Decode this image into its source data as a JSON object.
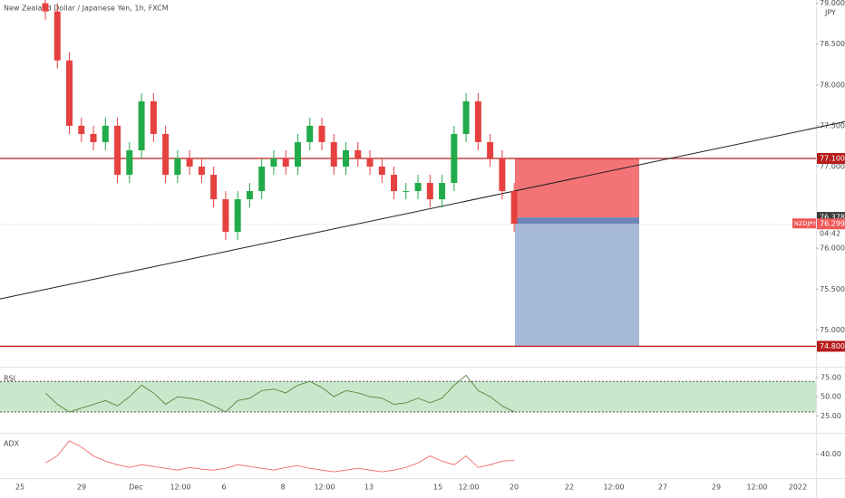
{
  "chart_data": {
    "type": "candlestick",
    "title": "New Zealand Dollar / Japanese Yen, 1h, FXCM",
    "currency_label": "JPY",
    "symbol": "NZDJPY",
    "countdown": "04:42",
    "open": [
      79.0,
      78.9,
      78.3,
      77.5,
      77.4,
      77.3,
      77.5,
      76.9,
      77.2,
      77.8,
      77.4,
      76.9,
      77.1,
      77.0,
      76.9,
      76.6,
      76.2,
      76.6,
      76.7,
      77.0,
      77.1,
      77.0,
      77.3,
      77.5,
      77.3,
      77.0,
      77.2,
      77.1,
      77.0,
      76.9,
      76.7,
      76.7,
      76.8,
      76.6,
      76.8,
      77.4,
      77.8,
      77.3,
      77.1,
      76.7
    ],
    "high": [
      79.1,
      79.0,
      78.4,
      77.6,
      77.5,
      77.6,
      77.6,
      77.3,
      77.9,
      77.9,
      77.5,
      77.2,
      77.2,
      77.1,
      77.0,
      76.7,
      76.7,
      76.8,
      77.1,
      77.2,
      77.2,
      77.4,
      77.6,
      77.6,
      77.4,
      77.3,
      77.3,
      77.2,
      77.1,
      77.0,
      76.8,
      76.9,
      76.9,
      76.9,
      77.5,
      77.9,
      77.9,
      77.4,
      77.2,
      76.8
    ],
    "low": [
      78.8,
      78.2,
      77.4,
      77.3,
      77.2,
      77.2,
      76.8,
      76.8,
      77.1,
      77.3,
      76.8,
      76.8,
      76.9,
      76.8,
      76.5,
      76.1,
      76.1,
      76.5,
      76.6,
      76.9,
      76.9,
      76.9,
      77.2,
      77.2,
      76.9,
      76.9,
      77.0,
      76.9,
      76.8,
      76.6,
      76.6,
      76.6,
      76.5,
      76.5,
      76.7,
      77.3,
      77.2,
      77.0,
      76.6,
      76.2
    ],
    "close": [
      78.9,
      78.3,
      77.5,
      77.4,
      77.3,
      77.5,
      76.9,
      77.2,
      77.8,
      77.4,
      76.9,
      77.1,
      77.0,
      76.9,
      76.6,
      76.2,
      76.6,
      76.7,
      77.0,
      77.1,
      77.0,
      77.3,
      77.5,
      77.3,
      77.0,
      77.2,
      77.1,
      77.0,
      76.9,
      76.7,
      76.7,
      76.8,
      76.6,
      76.8,
      77.4,
      77.8,
      77.3,
      77.1,
      76.7,
      76.3
    ],
    "up_color": "#22ab4a",
    "down_color": "#e5413f",
    "ylim": [
      74.55,
      79.04
    ],
    "yticks": [
      {
        "value": 79.0,
        "label": "79.000"
      },
      {
        "value": 78.5,
        "label": "78.500"
      },
      {
        "value": 78.0,
        "label": "78.000"
      },
      {
        "value": 77.5,
        "label": "77.500"
      },
      {
        "value": 77.0,
        "label": "77.000"
      },
      {
        "value": 76.0,
        "label": "76.000"
      },
      {
        "value": 75.5,
        "label": "75.500"
      },
      {
        "value": 75.0,
        "label": "75.000"
      }
    ],
    "x_labels": [
      "25",
      "29",
      "Dec",
      "12:00",
      "6",
      "8",
      "12:00",
      "13",
      "15",
      "12:00",
      "20",
      "22",
      "12:00",
      "27",
      "29",
      "12:00",
      "2022"
    ],
    "stop": {
      "value": 77.1,
      "label": "77.100"
    },
    "entry": {
      "value": 76.378,
      "label": "76.378"
    },
    "last_price": {
      "value": 76.299,
      "label": "76.299"
    },
    "target": {
      "value": 74.8,
      "label": "74.800"
    },
    "trendline": [
      75.38,
      77.55
    ],
    "rsi": {
      "name": "RSI",
      "color": "#4f7a2e",
      "values": [
        55,
        40,
        30,
        35,
        40,
        45,
        38,
        50,
        65,
        55,
        40,
        50,
        48,
        45,
        38,
        30,
        45,
        48,
        58,
        60,
        55,
        65,
        70,
        62,
        50,
        58,
        55,
        50,
        48,
        40,
        42,
        48,
        42,
        48,
        65,
        78,
        58,
        50,
        38,
        30
      ],
      "ylim": [
        4,
        88
      ],
      "band": [
        30,
        70
      ],
      "yticks": [
        {
          "value": 75,
          "label": "75.00"
        },
        {
          "value": 50,
          "label": "50.00"
        },
        {
          "value": 25,
          "label": "25.00"
        }
      ]
    },
    "adx": {
      "name": "ADX",
      "color": "#f05a5a",
      "values": [
        30,
        38,
        55,
        48,
        38,
        32,
        28,
        25,
        28,
        26,
        24,
        22,
        25,
        23,
        22,
        24,
        28,
        26,
        24,
        22,
        25,
        27,
        24,
        22,
        20,
        22,
        24,
        22,
        20,
        22,
        25,
        30,
        38,
        32,
        28,
        38,
        25,
        28,
        32,
        33
      ],
      "ylim": [
        13,
        63
      ],
      "yticks": [
        {
          "value": 40,
          "label": "40.00"
        }
      ]
    }
  }
}
